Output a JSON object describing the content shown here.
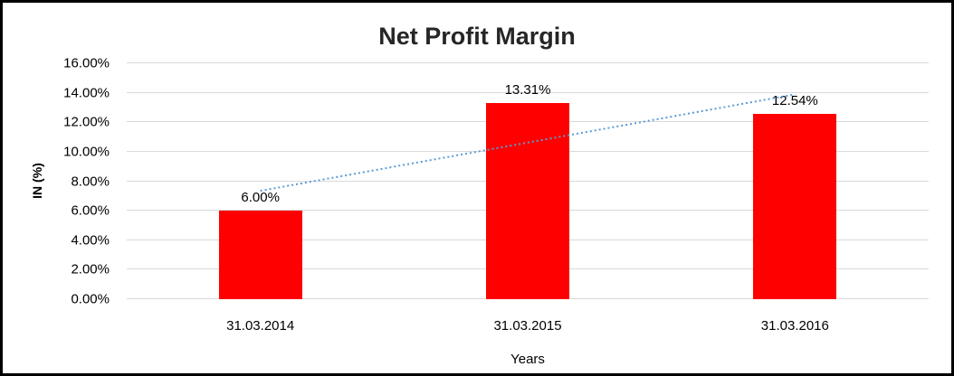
{
  "chart_data": {
    "type": "bar",
    "title": "Net Profit Margin",
    "xlabel": "Years",
    "ylabel": "IN (%)",
    "categories": [
      "31.03.2014",
      "31.03.2015",
      "31.03.2016"
    ],
    "values": [
      6.0,
      13.31,
      12.54
    ],
    "data_labels": [
      "6.00%",
      "13.31%",
      "12.54%"
    ],
    "bar_color": "#ff0000",
    "ylim": [
      0,
      16
    ],
    "ytick_step": 2,
    "ytick_labels": [
      "0.00%",
      "2.00%",
      "4.00%",
      "6.00%",
      "8.00%",
      "10.00%",
      "12.00%",
      "14.00%",
      "16.00%"
    ],
    "grid": "horizontal",
    "gridline_color": "#d9d9d9",
    "legend": "none",
    "trendline": {
      "kind": "linear",
      "style": "dotted",
      "color": "#5b9bd5",
      "start_value": 7.35,
      "end_value": 13.89
    }
  }
}
